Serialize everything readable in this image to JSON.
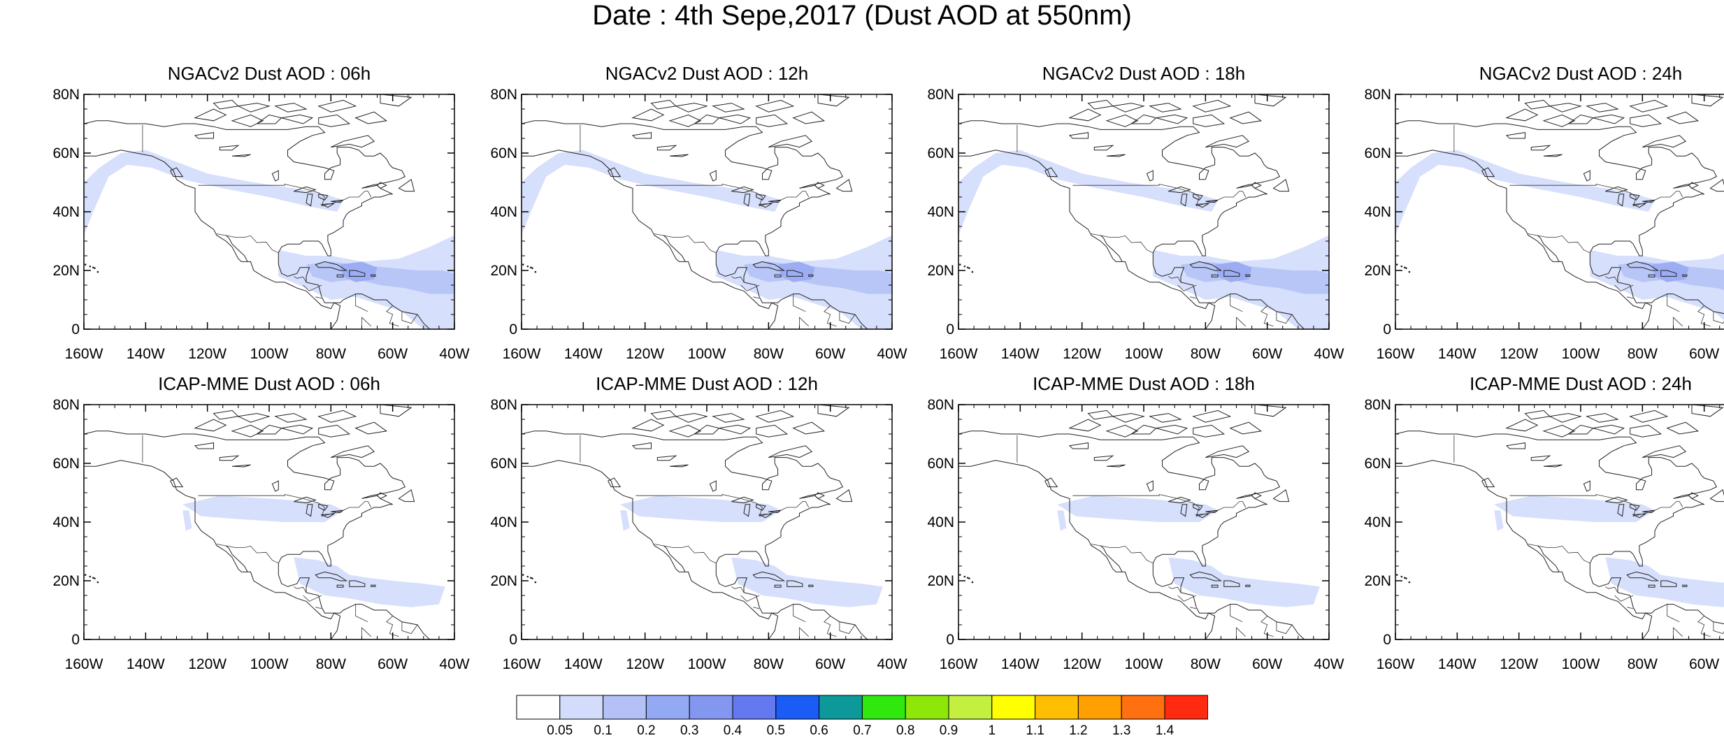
{
  "title": "Date : 4th Sepe,2017 (Dust AOD at 550nm)",
  "axes": {
    "lon_ticks": [
      "160W",
      "140W",
      "120W",
      "100W",
      "80W",
      "60W",
      "40W"
    ],
    "lat_ticks": [
      "80N",
      "60N",
      "40N",
      "20N",
      "0"
    ],
    "lon_range": [
      -160,
      -40
    ],
    "lat_range": [
      0,
      80
    ]
  },
  "panels": [
    {
      "id": "ngac-06",
      "title": "NGACv2 Dust AOD : 06h",
      "model": "ngac"
    },
    {
      "id": "ngac-12",
      "title": "NGACv2 Dust AOD : 12h",
      "model": "ngac"
    },
    {
      "id": "ngac-18",
      "title": "NGACv2 Dust AOD : 18h",
      "model": "ngac"
    },
    {
      "id": "ngac-24",
      "title": "NGACv2 Dust AOD : 24h",
      "model": "ngac"
    },
    {
      "id": "icap-06",
      "title": "ICAP-MME Dust AOD : 06h",
      "model": "icap"
    },
    {
      "id": "icap-12",
      "title": "ICAP-MME Dust AOD : 12h",
      "model": "icap"
    },
    {
      "id": "icap-18",
      "title": "ICAP-MME Dust AOD : 18h",
      "model": "icap"
    },
    {
      "id": "icap-24",
      "title": "ICAP-MME Dust AOD : 24h",
      "model": "icap"
    }
  ],
  "colorbar": {
    "labels": [
      "0.05",
      "0.1",
      "0.2",
      "0.3",
      "0.4",
      "0.5",
      "0.6",
      "0.7",
      "0.8",
      "0.9",
      "1",
      "1.1",
      "1.2",
      "1.3",
      "1.4"
    ],
    "colors": [
      "#ffffff",
      "#d3dcfa",
      "#b3c1f7",
      "#94a9f4",
      "#8397f0",
      "#6478ef",
      "#1a5cf5",
      "#0d9999",
      "#2ee80e",
      "#8de80a",
      "#c2ef40",
      "#ffff00",
      "#ffbf00",
      "#ff9f00",
      "#ff7010",
      "#ff2a10"
    ]
  },
  "dust_colors": {
    "low": "#d6dffb",
    "mid": "#b8c6f7",
    "high": "#9dadf3"
  }
}
